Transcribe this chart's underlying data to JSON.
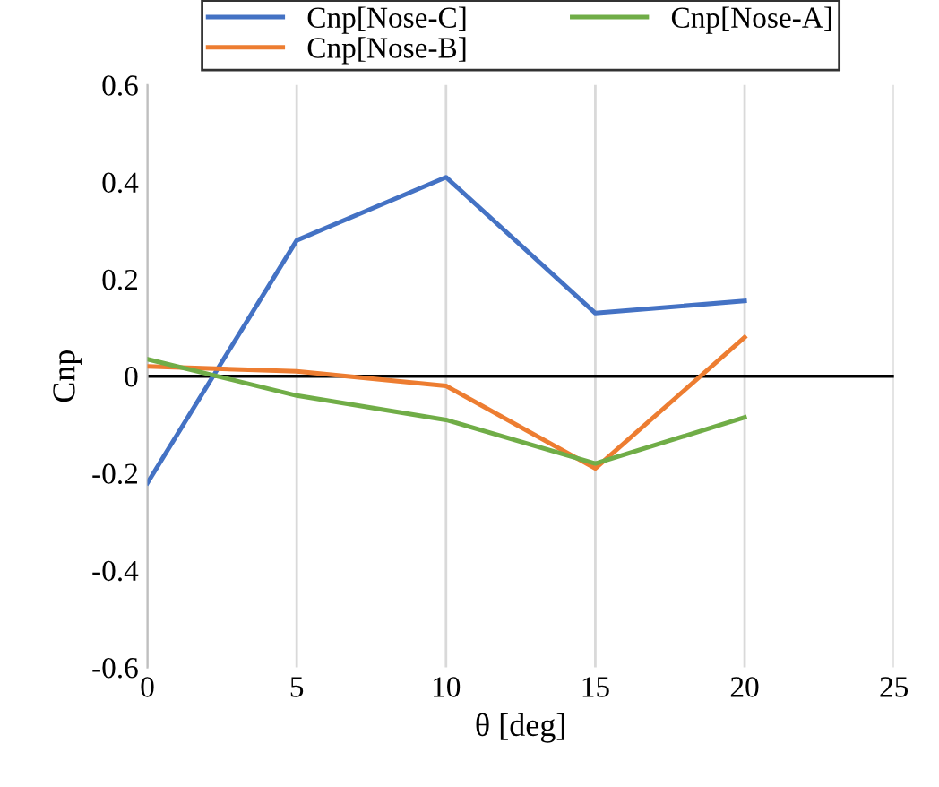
{
  "chart_data": {
    "type": "line",
    "xlabel": "θ [deg]",
    "ylabel": "Cnp",
    "x": [
      0,
      5,
      10,
      15,
      20
    ],
    "series": [
      {
        "name": "Cnp[Nose-C]",
        "color": "#4472c4",
        "values": [
          -0.22,
          0.28,
          0.41,
          0.13,
          0.155
        ]
      },
      {
        "name": "Cnp[Nose-B]",
        "color": "#ed7d31",
        "values": [
          0.02,
          0.01,
          -0.02,
          -0.19,
          0.08
        ]
      },
      {
        "name": "Cnp[Nose-A]",
        "color": "#70ad47",
        "values": [
          0.035,
          -0.04,
          -0.09,
          -0.18,
          -0.085
        ]
      }
    ],
    "xlim": [
      0,
      25
    ],
    "xticks": [
      0,
      5,
      10,
      15,
      20,
      25
    ],
    "ylim": [
      -0.6,
      0.6
    ],
    "yticks": [
      {
        "value": -0.6,
        "label": "-0.6"
      },
      {
        "value": -0.4,
        "label": "-0.4"
      },
      {
        "value": -0.2,
        "label": "-0.2"
      },
      0,
      0.2,
      0.4,
      0.6
    ],
    "ref_lines": [
      {
        "axis": "y",
        "value": 0,
        "color": "#000000"
      }
    ],
    "grid": "x",
    "legend": "top",
    "marker": "none",
    "line_style": "solid"
  }
}
